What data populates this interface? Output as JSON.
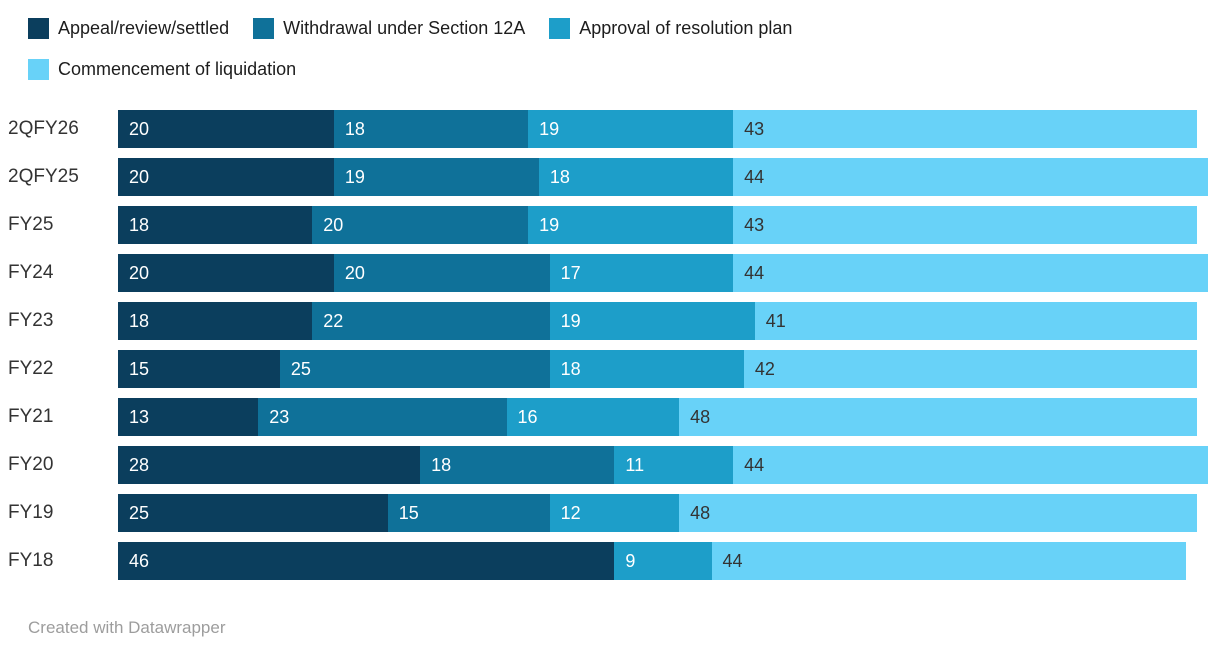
{
  "attribution": "Created with Datawrapper",
  "chart_data": {
    "type": "bar",
    "stacked": true,
    "orientation": "horizontal",
    "title": "",
    "xlabel": "",
    "ylabel": "",
    "xlim": [
      0,
      101
    ],
    "grid": false,
    "legend_position": "top",
    "legend_break_after_index": 2,
    "value_labels": "inside-start",
    "categories": [
      "2QFY26",
      "2QFY25",
      "FY25",
      "FY24",
      "FY23",
      "FY22",
      "FY21",
      "FY20",
      "FY19",
      "FY18"
    ],
    "series": [
      {
        "name": "Appeal/review/settled",
        "color": "#0b3e5d",
        "values": [
          20,
          20,
          18,
          20,
          18,
          15,
          13,
          28,
          25,
          46
        ]
      },
      {
        "name": "Withdrawal under Section 12A",
        "color": "#0f7199",
        "values": [
          18,
          19,
          20,
          20,
          22,
          25,
          23,
          18,
          15,
          0
        ]
      },
      {
        "name": "Approval of resolution plan",
        "color": "#1d9ec9",
        "values": [
          19,
          18,
          19,
          17,
          19,
          18,
          16,
          11,
          12,
          9
        ]
      },
      {
        "name": "Commencement of liquidation",
        "color": "#68d2f8",
        "values": [
          43,
          44,
          43,
          44,
          41,
          42,
          48,
          44,
          48,
          44
        ]
      }
    ],
    "label_color_on_light": "#333333",
    "label_color_on_dark": "#ffffff"
  }
}
